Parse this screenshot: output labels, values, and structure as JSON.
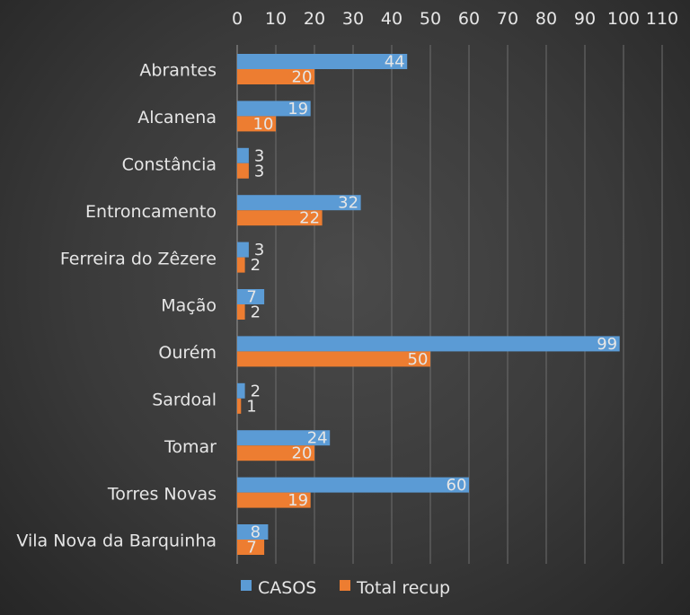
{
  "chart_data": {
    "type": "bar",
    "orientation": "horizontal",
    "categories": [
      "Abrantes",
      "Alcanena",
      "Constância",
      "Entroncamento",
      "Ferreira do Zêzere",
      "Mação",
      "Ourém",
      "Sardoal",
      "Tomar",
      "Torres Novas",
      "Vila Nova da Barquinha"
    ],
    "series": [
      {
        "name": "CASOS",
        "color": "#5b9bd5",
        "values": [
          44,
          19,
          3,
          32,
          3,
          7,
          99,
          2,
          24,
          60,
          8
        ]
      },
      {
        "name": "Total recup",
        "color": "#ed7d31",
        "values": [
          20,
          10,
          3,
          22,
          2,
          2,
          50,
          1,
          20,
          19,
          7
        ]
      }
    ],
    "xlim": [
      0,
      110
    ],
    "xticks": [
      0,
      10,
      20,
      30,
      40,
      50,
      60,
      70,
      80,
      90,
      100,
      110
    ],
    "axis_position": "top",
    "grid": true,
    "data_labels": true,
    "legend_position": "bottom"
  }
}
